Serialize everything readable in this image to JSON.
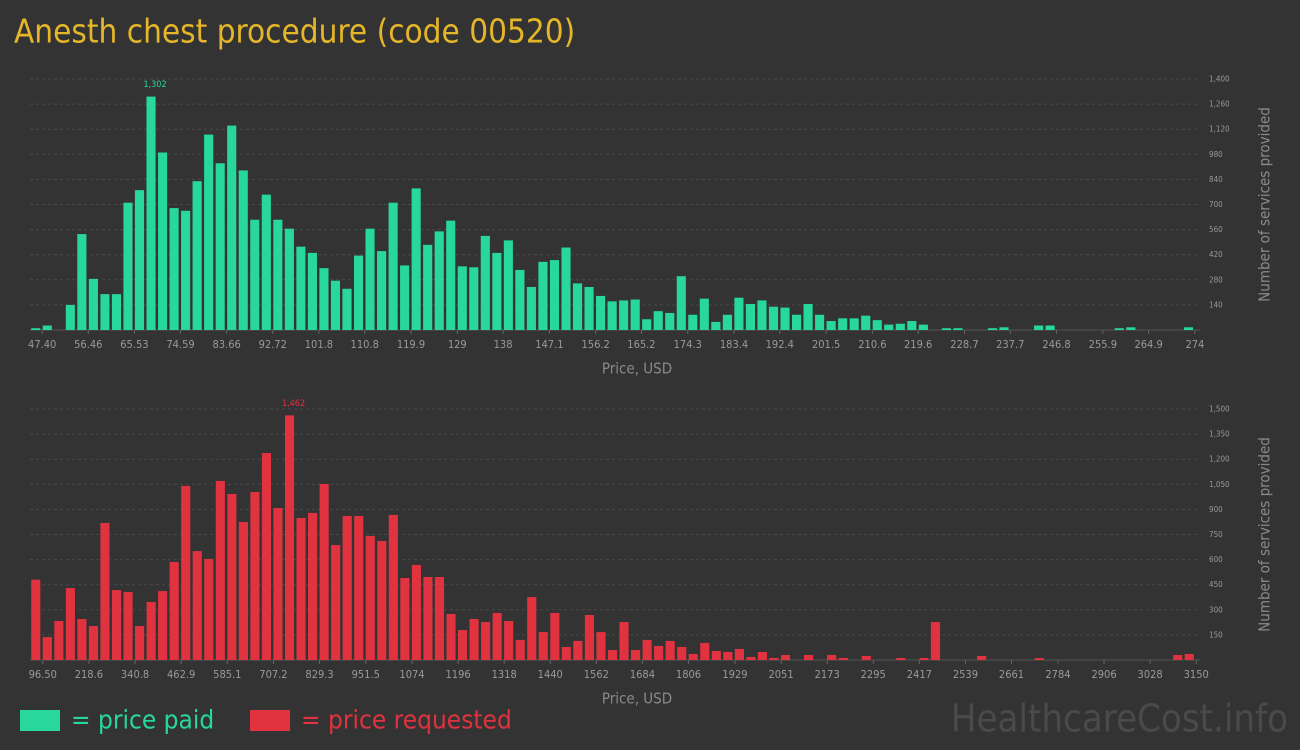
{
  "watermark": "HealthcareCost.info",
  "chart_data": [
    {
      "type": "histogram",
      "title": "Anesth chest procedure (code 00520)",
      "xlabel": "Price, USD",
      "ylabel": "Number of services provided",
      "grid": true,
      "bins": [
        45.0,
        47.27,
        49.53,
        51.8,
        54.06,
        56.33,
        58.6,
        60.86,
        63.13,
        65.39,
        67.66,
        69.93,
        72.19,
        74.46,
        76.72,
        78.99,
        81.26,
        83.52,
        85.79,
        88.05,
        90.32,
        92.59,
        94.85,
        97.12,
        99.38,
        101.65,
        103.92,
        106.18,
        108.45,
        110.71,
        112.98,
        115.25,
        117.51,
        119.78,
        122.04,
        124.31,
        126.58,
        128.84,
        131.11,
        133.37,
        135.64,
        137.91,
        140.17,
        142.44,
        144.7,
        146.97,
        149.24,
        151.5,
        153.77,
        156.03,
        158.3,
        160.57,
        162.83,
        165.1,
        167.36,
        169.63,
        171.9,
        174.16,
        176.43,
        178.69,
        180.96,
        183.23,
        185.49,
        187.76,
        190.02,
        192.29,
        194.56,
        196.82,
        199.09,
        201.35,
        203.62,
        205.89,
        208.15,
        210.42,
        212.68,
        214.95,
        217.22,
        219.48,
        221.75,
        224.01,
        226.28,
        228.55,
        230.81,
        233.08,
        235.34,
        237.61,
        239.88,
        242.14,
        244.41,
        246.67,
        248.94,
        251.21,
        253.47,
        255.74,
        258.0,
        260.27,
        262.54,
        264.8,
        267.07,
        269.33,
        271.6,
        273.87
      ],
      "series": [
        {
          "name": "= price paid",
          "color": "#27d79b",
          "values": [
            10,
            25,
            0,
            140,
            535,
            285,
            200,
            200,
            710,
            780,
            1302,
            990,
            680,
            665,
            830,
            1090,
            930,
            1140,
            890,
            615,
            755,
            615,
            565,
            465,
            430,
            345,
            275,
            230,
            415,
            565,
            440,
            710,
            360,
            790,
            475,
            550,
            610,
            355,
            350,
            525,
            430,
            500,
            335,
            240,
            380,
            390,
            460,
            260,
            240,
            190,
            160,
            165,
            170,
            60,
            105,
            95,
            300,
            85,
            175,
            45,
            85,
            180,
            145,
            165,
            130,
            125,
            85,
            145,
            85,
            50,
            65,
            65,
            80,
            55,
            30,
            35,
            50,
            30,
            0,
            10,
            10,
            0,
            0,
            10,
            15,
            0,
            0,
            25,
            25,
            0,
            0,
            0,
            0,
            0,
            10,
            15,
            0,
            0,
            0,
            0,
            15
          ],
          "value_labels": [
            null,
            null,
            null,
            null,
            null,
            null,
            null,
            null,
            null,
            null,
            "1,302",
            null,
            null,
            null,
            null,
            null,
            null,
            null,
            null,
            null,
            null,
            null,
            null,
            null,
            null,
            null,
            null,
            null,
            null,
            null,
            null,
            null,
            null,
            null,
            null,
            null,
            null,
            null,
            null,
            null,
            null,
            null,
            null,
            null,
            null,
            null,
            null,
            null,
            null,
            null,
            null,
            null,
            null,
            null,
            null,
            null,
            null,
            null,
            null,
            null,
            null,
            null,
            null,
            null,
            null,
            null,
            null,
            null,
            null,
            null,
            null,
            null,
            null,
            null,
            null,
            null,
            null,
            null,
            null,
            null,
            null,
            null,
            null,
            null,
            null,
            null,
            null,
            null,
            null,
            null,
            null,
            null,
            null,
            null,
            null,
            null,
            null,
            null,
            null,
            null,
            null
          ]
        }
      ],
      "xlim": [
        45,
        275
      ],
      "xticks": [
        {
          "value": 47.4,
          "label": "47.40"
        },
        56.46,
        65.53,
        74.59,
        83.66,
        92.72,
        101.8,
        110.8,
        119.9,
        129,
        138,
        147.1,
        156.2,
        165.2,
        174.3,
        183.4,
        192.4,
        201.5,
        210.6,
        219.6,
        228.7,
        237.7,
        246.8,
        255.9,
        264.9,
        274
      ],
      "ylim": [
        0,
        1400
      ],
      "yticks": [
        140,
        280,
        420,
        560,
        700,
        840,
        980,
        {
          "value": 1120,
          "label": "1,120"
        },
        {
          "value": 1260,
          "label": "1,260"
        },
        {
          "value": 1400,
          "label": "1,400"
        }
      ]
    },
    {
      "type": "histogram",
      "xlabel": "Price, USD",
      "ylabel": "Number of services provided",
      "grid": true,
      "bins": [
        62.7,
        93.2,
        123.8,
        154.3,
        184.8,
        215.4,
        245.9,
        276.4,
        307.0,
        337.5,
        368.1,
        398.6,
        429.1,
        459.7,
        490.2,
        520.7,
        551.3,
        581.8,
        612.3,
        642.9,
        673.4,
        703.9,
        734.5,
        765.0,
        795.5,
        826.1,
        856.6,
        887.1,
        917.7,
        948.2,
        978.8,
        1009.3,
        1039.8,
        1070.4,
        1100.9,
        1131.4,
        1162.0,
        1192.5,
        1223.0,
        1253.6,
        1284.1,
        1314.6,
        1345.2,
        1375.7,
        1406.2,
        1436.8,
        1467.3,
        1497.8,
        1528.4,
        1558.9,
        1589.5,
        1620.0,
        1650.5,
        1681.1,
        1711.6,
        1742.1,
        1772.7,
        1803.2,
        1833.7,
        1864.3,
        1894.8,
        1925.3,
        1955.9,
        1986.4,
        2016.9,
        2047.5,
        2078.0,
        2108.5,
        2139.1,
        2169.6,
        2200.2,
        2230.7,
        2261.2,
        2291.8,
        2322.3,
        2352.8,
        2383.4,
        2413.9,
        2444.4,
        2475.0,
        2505.5,
        2536.0,
        2566.6,
        2597.1,
        2627.6,
        2658.2,
        2688.7,
        2719.2,
        2749.8,
        2780.3,
        2810.9,
        2841.4,
        2871.9,
        2902.5,
        2933.0,
        2963.5,
        2994.1,
        3024.6,
        3055.1,
        3085.7,
        3116.2,
        3146.7
      ],
      "series": [
        {
          "name": "= price requested",
          "color": "#e0323f",
          "values": [
            480,
            137,
            233,
            430,
            245,
            203,
            819,
            418,
            406,
            203,
            347,
            412,
            586,
            1040,
            651,
            604,
            1070,
            992,
            825,
            1004,
            1237,
            908,
            1462,
            849,
            879,
            1052,
            687,
            861,
            861,
            741,
            711,
            867,
            490,
            568,
            496,
            496,
            275,
            179,
            245,
            227,
            281,
            233,
            120,
            376,
            167,
            281,
            78,
            114,
            269,
            167,
            60,
            227,
            60,
            120,
            84,
            114,
            78,
            36,
            102,
            54,
            48,
            66,
            18,
            48,
            12,
            30,
            0,
            30,
            0,
            30,
            12,
            0,
            24,
            0,
            0,
            12,
            0,
            12,
            227,
            0,
            0,
            0,
            24,
            0,
            0,
            0,
            0,
            12,
            0,
            0,
            0,
            0,
            0,
            0,
            0,
            0,
            0,
            0,
            0,
            30,
            36
          ],
          "value_labels": [
            null,
            null,
            null,
            null,
            null,
            null,
            null,
            null,
            null,
            null,
            null,
            null,
            null,
            null,
            null,
            null,
            null,
            null,
            null,
            null,
            null,
            null,
            "1,462",
            null,
            null,
            null,
            null,
            null,
            null,
            null,
            null,
            null,
            null,
            null,
            null,
            null,
            null,
            null,
            null,
            null,
            null,
            null,
            null,
            null,
            null,
            null,
            null,
            null,
            null,
            null,
            null,
            null,
            null,
            null,
            null,
            null,
            null,
            null,
            null,
            null,
            null,
            null,
            null,
            null,
            null,
            null,
            null,
            null,
            null,
            null,
            null,
            null,
            null,
            null,
            null,
            null,
            null,
            null,
            null,
            null,
            null,
            null,
            null,
            null,
            null,
            null,
            null,
            null,
            null,
            null,
            null,
            null,
            null,
            null,
            null,
            null,
            null,
            null,
            null,
            null,
            null
          ]
        }
      ],
      "xlim": [
        62.7,
        3160
      ],
      "xticks": [
        {
          "value": 96.5,
          "label": "96.50"
        },
        218.6,
        340.8,
        462.9,
        585.1,
        707.2,
        829.3,
        951.5,
        1074,
        1196,
        1318,
        1440,
        1562,
        1684,
        1806,
        1929,
        2051,
        2173,
        2295,
        2417,
        2539,
        2661,
        2784,
        2906,
        3028,
        3150
      ],
      "ylim": [
        0,
        1500
      ],
      "yticks": [
        150,
        300,
        450,
        600,
        750,
        900,
        {
          "value": 1050,
          "label": "1,050"
        },
        {
          "value": 1200,
          "label": "1,200"
        },
        {
          "value": 1350,
          "label": "1,350"
        },
        {
          "value": 1500,
          "label": "1,500"
        }
      ]
    }
  ]
}
